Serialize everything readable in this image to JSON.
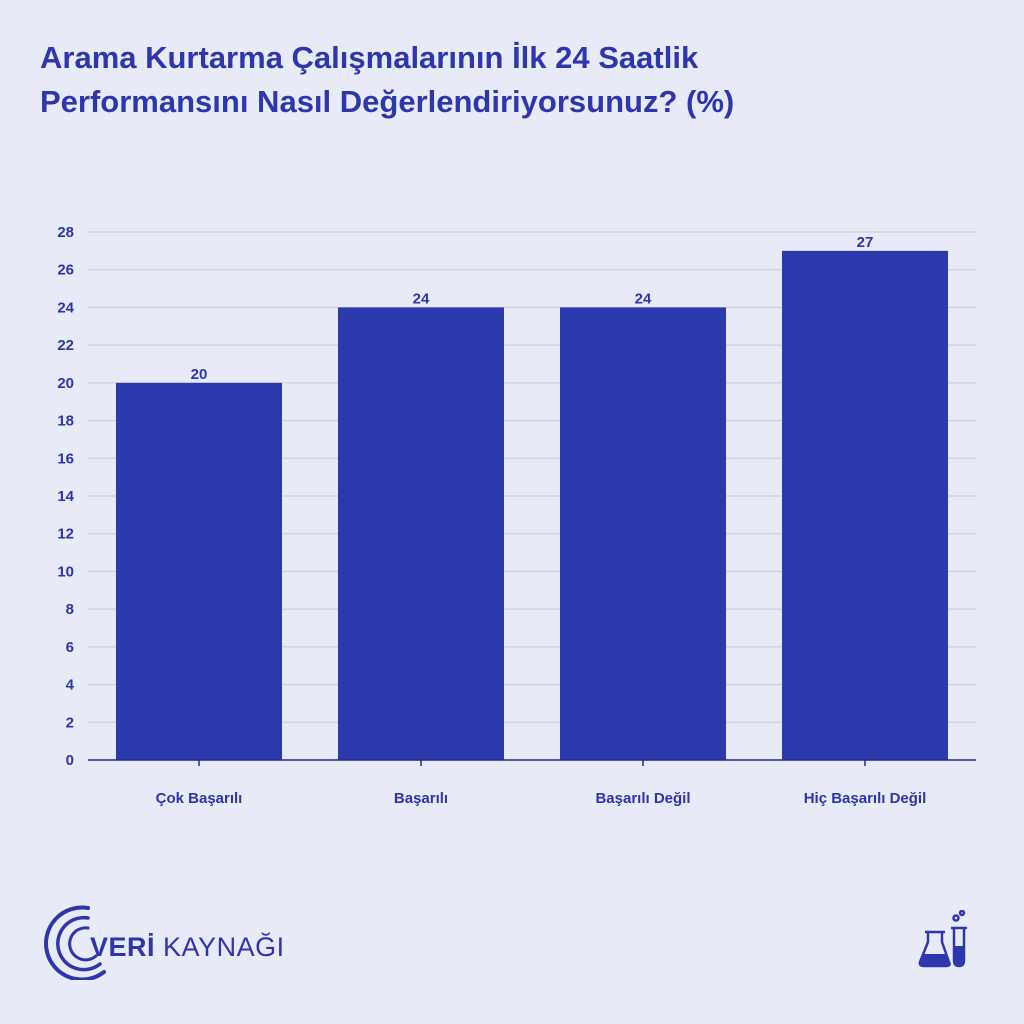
{
  "colors": {
    "background": "#e9eaf7",
    "bar": "#2b39ad",
    "text": "#2d36ad",
    "grid": "#c7c8d6"
  },
  "title_lines": [
    "Arama Kurtarma Çalışmalarının İlk 24 Saatlik",
    "Performansını Nasıl Değerlendiriyorsunuz? (%)"
  ],
  "chart_data": {
    "type": "bar",
    "title": "Arama Kurtarma Çalışmalarının İlk 24 Saatlik Performansını Nasıl Değerlendiriyorsunuz? (%)",
    "categories": [
      "Çok Başarılı",
      "Başarılı",
      "Başarılı Değil",
      "Hiç Başarılı Değil"
    ],
    "values": [
      20,
      24,
      24,
      27
    ],
    "data_labels": [
      "20",
      "24",
      "24",
      "27"
    ],
    "yticks": [
      "0",
      "2",
      "4",
      "6",
      "8",
      "10",
      "12",
      "14",
      "16",
      "18",
      "20",
      "22",
      "24",
      "26",
      "28"
    ],
    "ylim": [
      0,
      28
    ],
    "grid": true,
    "legend": "none"
  },
  "logo": {
    "text_bold": "VERİ",
    "text_light": "KAYNAĞI"
  },
  "icons": {
    "brand": "veri-kaynagi-logo-icon",
    "corner": "lab-flask-icon"
  }
}
